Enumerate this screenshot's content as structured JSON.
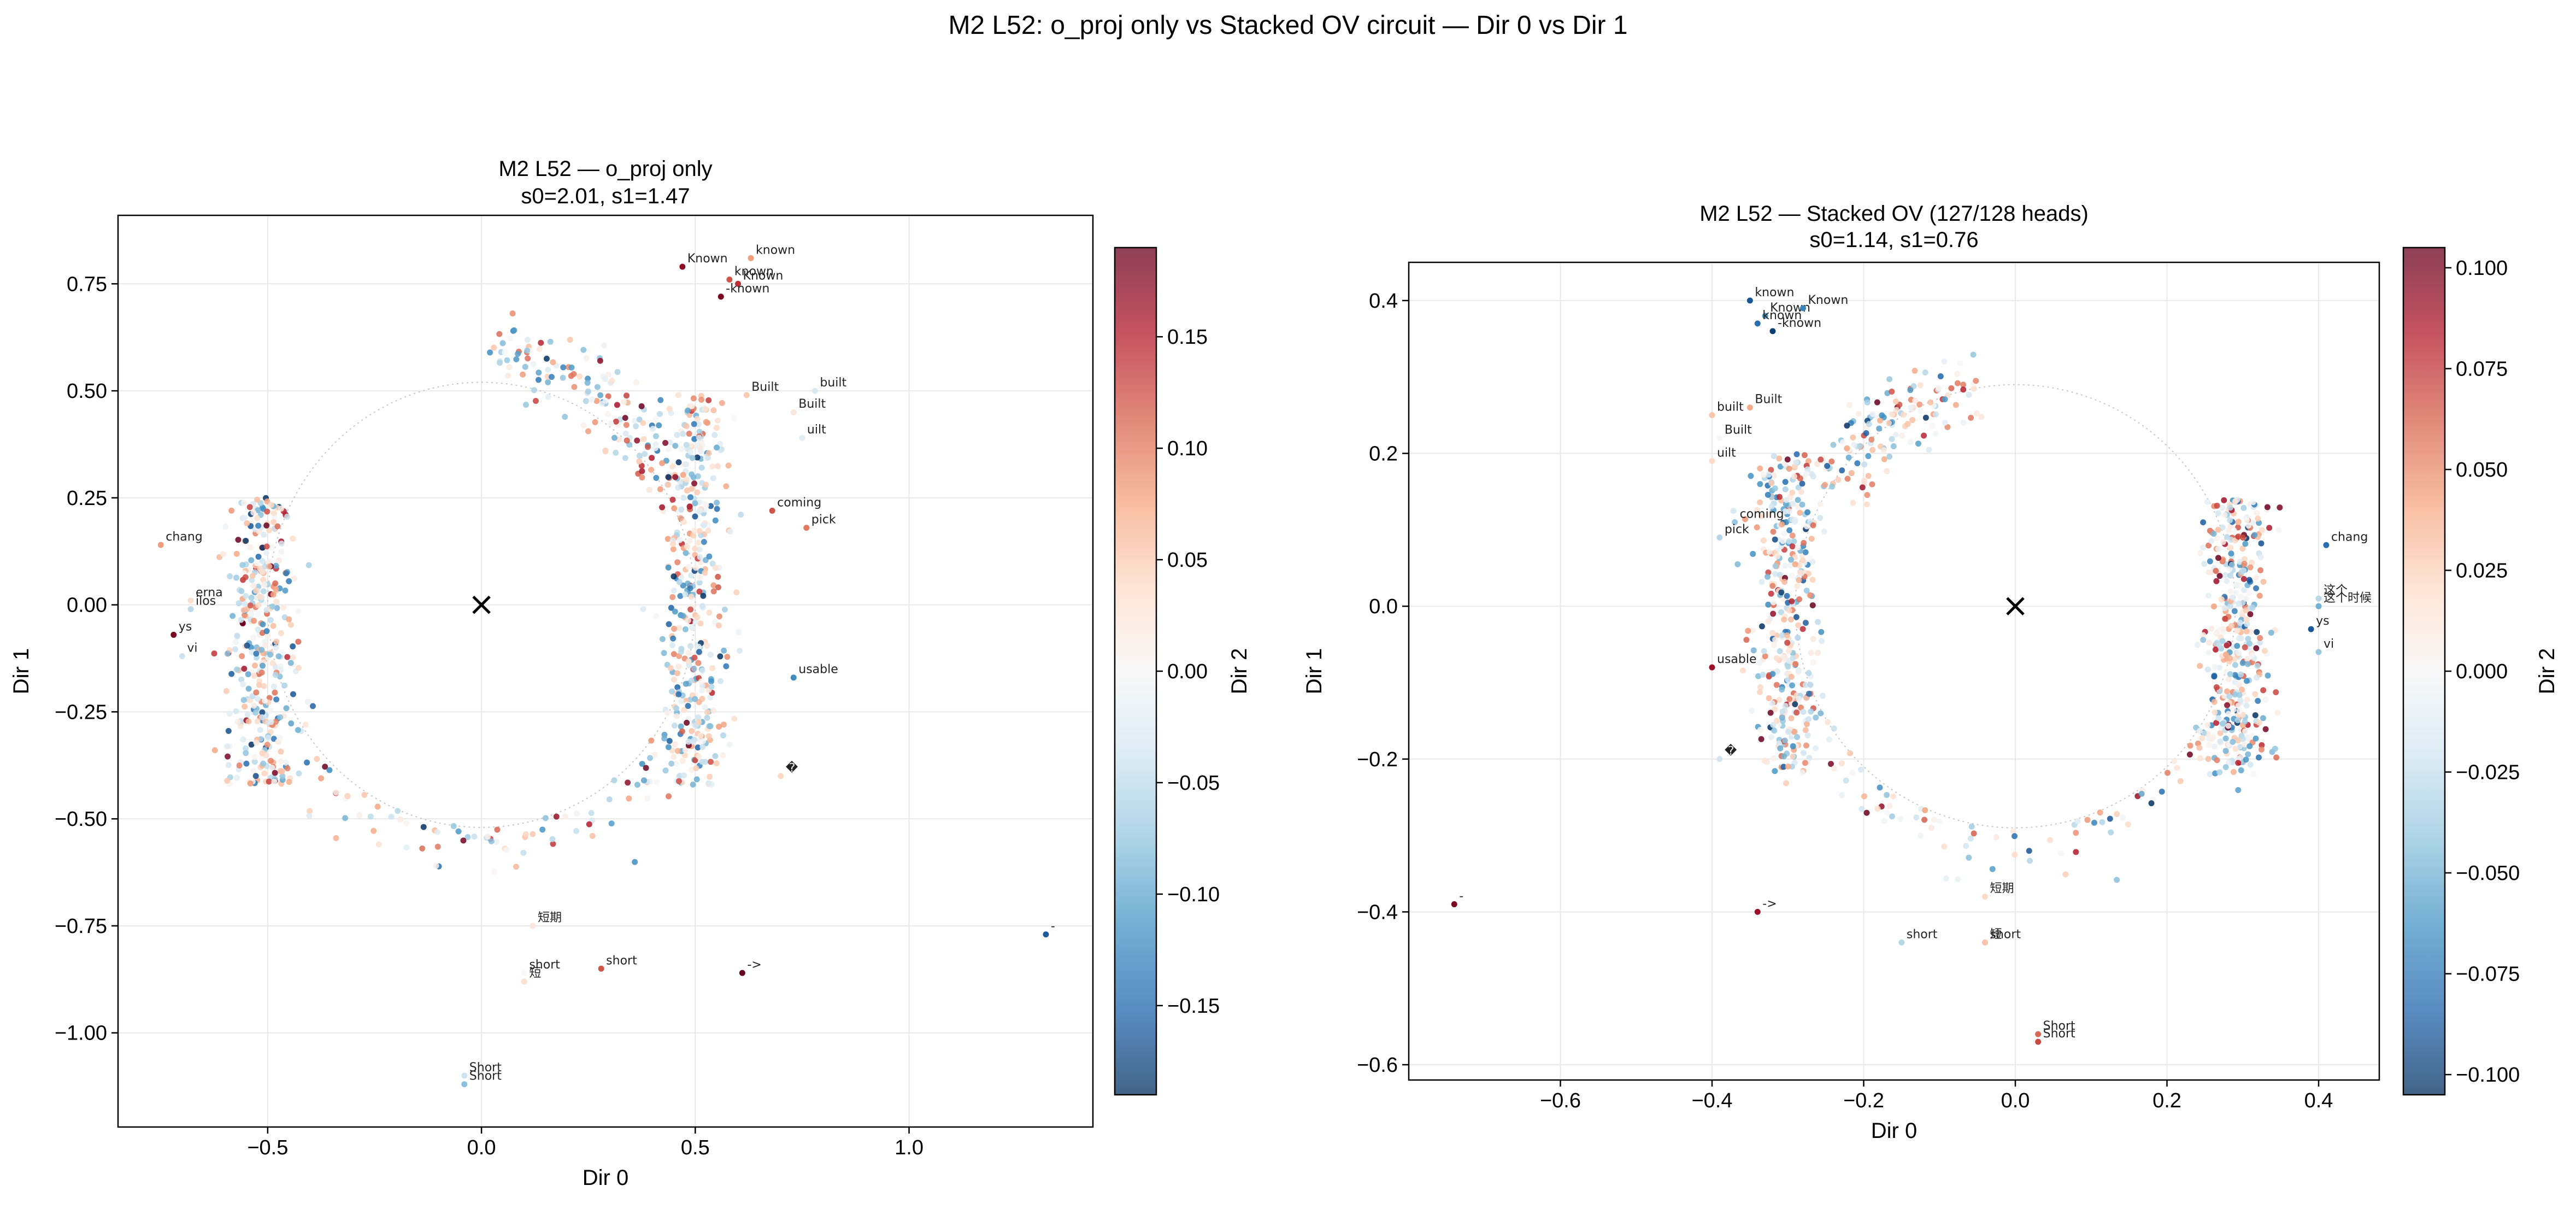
{
  "suptitle": "M2 L52: o_proj only vs Stacked OV circuit — Dir 0 vs Dir 1",
  "chart_data": [
    {
      "type": "scatter",
      "title": "M2 L52 — o_proj only",
      "subtitle": "s0=2.01, s1=1.47",
      "xlabel": "Dir 0",
      "ylabel": "Dir 1",
      "colorbar_label": "Dir 2",
      "xlim": [
        -0.85,
        1.43
      ],
      "ylim": [
        -1.22,
        0.91
      ],
      "xticks": [
        -0.5,
        0.0,
        0.5,
        1.0
      ],
      "xtick_labels": [
        "−0.5",
        "0.0",
        "0.5",
        "1.0"
      ],
      "yticks": [
        -1.0,
        -0.75,
        -0.5,
        -0.25,
        0.0,
        0.25,
        0.5,
        0.75
      ],
      "ytick_labels": [
        "−1.00",
        "−0.75",
        "−0.50",
        "−0.25",
        "0.00",
        "0.25",
        "0.50",
        "0.75"
      ],
      "clim": [
        -0.19,
        0.19
      ],
      "cticks": [
        -0.15,
        -0.1,
        -0.05,
        0.0,
        0.05,
        0.1,
        0.15
      ],
      "ctick_labels": [
        "−0.15",
        "−0.10",
        "−0.05",
        "0.00",
        "0.05",
        "0.10",
        "0.15"
      ],
      "colormap": "RdBu_r",
      "grid": true,
      "center_marker": [
        0,
        0
      ],
      "ring": {
        "radius_x": 0.5,
        "radius_y": 0.52
      },
      "cloud": {
        "left": {
          "cx": -0.51,
          "ymin": -0.42,
          "ymax": 0.25
        },
        "right": {
          "cx": 0.5,
          "ymin": -0.42,
          "ymax": 0.49
        },
        "top": {
          "ymin": 0.42,
          "ymax": 0.72
        },
        "bottom": {
          "ymin": -0.68,
          "ymax": -0.45
        }
      },
      "labeled_points": [
        {
          "x": 0.47,
          "y": 0.79,
          "c": 0.17,
          "label": "Known"
        },
        {
          "x": 0.63,
          "y": 0.81,
          "c": 0.08,
          "label": "known"
        },
        {
          "x": 0.58,
          "y": 0.76,
          "c": 0.12,
          "label": "known"
        },
        {
          "x": 0.6,
          "y": 0.75,
          "c": 0.14,
          "label": "Known"
        },
        {
          "x": 0.56,
          "y": 0.72,
          "c": 0.18,
          "label": "-known"
        },
        {
          "x": 0.62,
          "y": 0.49,
          "c": 0.05,
          "label": "Built"
        },
        {
          "x": 0.78,
          "y": 0.5,
          "c": -0.03,
          "label": "built"
        },
        {
          "x": 0.73,
          "y": 0.45,
          "c": 0.02,
          "label": "Built"
        },
        {
          "x": 0.75,
          "y": 0.39,
          "c": -0.02,
          "label": "uilt"
        },
        {
          "x": 0.68,
          "y": 0.22,
          "c": 0.12,
          "label": "coming"
        },
        {
          "x": 0.76,
          "y": 0.18,
          "c": 0.1,
          "label": "pick"
        },
        {
          "x": -0.75,
          "y": 0.14,
          "c": 0.08,
          "label": "chang"
        },
        {
          "x": -0.68,
          "y": 0.01,
          "c": 0.03,
          "label": "erna"
        },
        {
          "x": -0.68,
          "y": -0.01,
          "c": -0.05,
          "label": "ilos"
        },
        {
          "x": -0.72,
          "y": -0.07,
          "c": 0.18,
          "label": "ys"
        },
        {
          "x": -0.7,
          "y": -0.12,
          "c": -0.04,
          "label": "vi"
        },
        {
          "x": 0.73,
          "y": -0.17,
          "c": -0.12,
          "label": "usable"
        },
        {
          "x": 0.7,
          "y": -0.4,
          "c": 0.04,
          "label": "�"
        },
        {
          "x": 0.12,
          "y": -0.75,
          "c": 0.02,
          "label": "短期"
        },
        {
          "x": 0.1,
          "y": -0.86,
          "c": 0.0,
          "label": "short"
        },
        {
          "x": 0.1,
          "y": -0.88,
          "c": 0.03,
          "label": "短"
        },
        {
          "x": 0.28,
          "y": -0.85,
          "c": 0.12,
          "label": "short"
        },
        {
          "x": 0.61,
          "y": -0.86,
          "c": 0.2,
          "label": "->"
        },
        {
          "x": -0.04,
          "y": -1.1,
          "c": -0.04,
          "label": "Short"
        },
        {
          "x": -0.04,
          "y": -1.12,
          "c": -0.08,
          "label": "Short"
        },
        {
          "x": 1.32,
          "y": -0.77,
          "c": -0.16,
          "label": "-"
        }
      ]
    },
    {
      "type": "scatter",
      "title": "M2 L52 — Stacked OV (127/128 heads)",
      "subtitle": "s0=1.14, s1=0.76",
      "xlabel": "Dir 0",
      "ylabel": "Dir 1",
      "colorbar_label": "Dir 2",
      "xlim": [
        -0.8,
        0.48
      ],
      "ylim": [
        -0.62,
        0.45
      ],
      "xticks": [
        -0.6,
        -0.4,
        -0.2,
        0.0,
        0.2,
        0.4
      ],
      "xtick_labels": [
        "−0.6",
        "−0.4",
        "−0.2",
        "0.0",
        "0.2",
        "0.4"
      ],
      "yticks": [
        -0.6,
        -0.4,
        -0.2,
        0.0,
        0.2,
        0.4
      ],
      "ytick_labels": [
        "−0.6",
        "−0.4",
        "−0.2",
        "0.0",
        "0.2",
        "0.4"
      ],
      "clim": [
        -0.105,
        0.105
      ],
      "cticks": [
        -0.1,
        -0.075,
        -0.05,
        -0.025,
        0.0,
        0.025,
        0.05,
        0.075,
        0.1
      ],
      "ctick_labels": [
        "−0.100",
        "−0.075",
        "−0.050",
        "−0.025",
        "0.000",
        "0.025",
        "0.050",
        "0.075",
        "0.100"
      ],
      "colormap": "RdBu_r",
      "grid": true,
      "center_marker": [
        0,
        0
      ],
      "ring": {
        "radius_x": 0.29,
        "radius_y": 0.29
      },
      "cloud": {
        "left": {
          "cx": -0.3,
          "ymin": -0.22,
          "ymax": 0.2
        },
        "right": {
          "cx": 0.29,
          "ymin": -0.22,
          "ymax": 0.14
        },
        "top": {
          "ymin": 0.2,
          "ymax": 0.36
        },
        "bottom": {
          "ymin": -0.34,
          "ymax": -0.26
        }
      },
      "labeled_points": [
        {
          "x": -0.35,
          "y": 0.4,
          "c": -0.09,
          "label": "known"
        },
        {
          "x": -0.33,
          "y": 0.38,
          "c": -0.06,
          "label": "Known"
        },
        {
          "x": -0.34,
          "y": 0.37,
          "c": -0.08,
          "label": "known"
        },
        {
          "x": -0.28,
          "y": 0.39,
          "c": -0.07,
          "label": "Known"
        },
        {
          "x": -0.32,
          "y": 0.36,
          "c": -0.1,
          "label": "-known"
        },
        {
          "x": -0.4,
          "y": 0.25,
          "c": 0.03,
          "label": "built"
        },
        {
          "x": -0.35,
          "y": 0.26,
          "c": 0.04,
          "label": "Built"
        },
        {
          "x": -0.39,
          "y": 0.22,
          "c": 0.0,
          "label": "Built"
        },
        {
          "x": -0.4,
          "y": 0.19,
          "c": 0.02,
          "label": "uilt"
        },
        {
          "x": -0.37,
          "y": 0.11,
          "c": -0.04,
          "label": "coming"
        },
        {
          "x": -0.39,
          "y": 0.09,
          "c": -0.03,
          "label": "pick"
        },
        {
          "x": 0.41,
          "y": 0.08,
          "c": -0.08,
          "label": "chang"
        },
        {
          "x": 0.4,
          "y": 0.01,
          "c": -0.03,
          "label": "这个"
        },
        {
          "x": 0.4,
          "y": 0.0,
          "c": -0.05,
          "label": "这个时候"
        },
        {
          "x": 0.39,
          "y": -0.03,
          "c": -0.09,
          "label": "ys"
        },
        {
          "x": 0.4,
          "y": -0.06,
          "c": -0.04,
          "label": "vi"
        },
        {
          "x": -0.4,
          "y": -0.08,
          "c": 0.09,
          "label": "usable"
        },
        {
          "x": -0.39,
          "y": -0.2,
          "c": -0.02,
          "label": "�"
        },
        {
          "x": -0.04,
          "y": -0.38,
          "c": 0.02,
          "label": "短期"
        },
        {
          "x": -0.15,
          "y": -0.44,
          "c": -0.03,
          "label": "short"
        },
        {
          "x": -0.04,
          "y": -0.44,
          "c": 0.04,
          "label": "short"
        },
        {
          "x": -0.04,
          "y": -0.44,
          "c": 0.03,
          "label": "短"
        },
        {
          "x": -0.34,
          "y": -0.4,
          "c": 0.09,
          "label": "->"
        },
        {
          "x": 0.03,
          "y": -0.56,
          "c": 0.06,
          "label": "Short"
        },
        {
          "x": 0.03,
          "y": -0.57,
          "c": 0.07,
          "label": "Short"
        },
        {
          "x": -0.74,
          "y": -0.39,
          "c": 0.1,
          "label": "-"
        }
      ]
    }
  ]
}
